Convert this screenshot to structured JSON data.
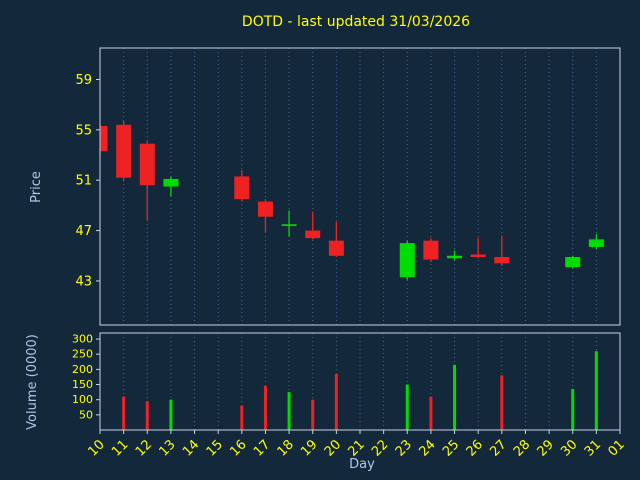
{
  "chart_data": {
    "type": "candlestick",
    "title": "DOTD - last updated 31/03/2026",
    "xlabel": "Day",
    "ylabel_price": "Price",
    "ylabel_volume": "Volume (0000)",
    "x_ticklabels": [
      "10",
      "11",
      "12",
      "13",
      "14",
      "15",
      "16",
      "17",
      "18",
      "19",
      "20",
      "21",
      "22",
      "23",
      "24",
      "25",
      "26",
      "27",
      "28",
      "29",
      "30",
      "31",
      "01"
    ],
    "price_ticks": [
      59,
      55,
      51,
      47,
      43
    ],
    "price_ylim": [
      39.5,
      61.5
    ],
    "volume_ticks": [
      300,
      250,
      200,
      150,
      100,
      50
    ],
    "volume_ylim": [
      0,
      320
    ],
    "grid": "vertical-dotted",
    "legend": "none",
    "candles": [
      {
        "day": "10",
        "open": 55.3,
        "high": 55.5,
        "low": 53.0,
        "close": 53.3,
        "volume": 0
      },
      {
        "day": "11",
        "open": 55.4,
        "high": 55.7,
        "low": 50.9,
        "close": 51.2,
        "volume": 110
      },
      {
        "day": "12",
        "open": 53.9,
        "high": 54.1,
        "low": 47.8,
        "close": 50.6,
        "volume": 95
      },
      {
        "day": "13",
        "open": 50.5,
        "high": 51.3,
        "low": 49.7,
        "close": 51.1,
        "volume": 100
      },
      {
        "day": "16",
        "open": 51.3,
        "high": 51.8,
        "low": 49.3,
        "close": 49.5,
        "volume": 80
      },
      {
        "day": "17",
        "open": 49.3,
        "high": 49.5,
        "low": 46.9,
        "close": 48.1,
        "volume": 145
      },
      {
        "day": "18",
        "open": 47.4,
        "high": 48.6,
        "low": 46.5,
        "close": 47.5,
        "volume": 125
      },
      {
        "day": "19",
        "open": 47.0,
        "high": 48.5,
        "low": 46.3,
        "close": 46.4,
        "volume": 100
      },
      {
        "day": "20",
        "open": 46.2,
        "high": 47.7,
        "low": 44.9,
        "close": 45.0,
        "volume": 185
      },
      {
        "day": "23",
        "open": 43.3,
        "high": 46.2,
        "low": 43.1,
        "close": 46.0,
        "volume": 150
      },
      {
        "day": "24",
        "open": 46.2,
        "high": 46.4,
        "low": 44.5,
        "close": 44.7,
        "volume": 110
      },
      {
        "day": "25",
        "open": 44.8,
        "high": 45.4,
        "low": 44.6,
        "close": 45.0,
        "volume": 215
      },
      {
        "day": "26",
        "open": 45.1,
        "high": 46.4,
        "low": 44.8,
        "close": 44.9,
        "volume": 0
      },
      {
        "day": "27",
        "open": 44.9,
        "high": 46.6,
        "low": 44.2,
        "close": 44.4,
        "volume": 180
      },
      {
        "day": "30",
        "open": 44.1,
        "high": 45.0,
        "low": 44.0,
        "close": 44.9,
        "volume": 135
      },
      {
        "day": "31",
        "open": 45.7,
        "high": 46.7,
        "low": 45.5,
        "close": 46.3,
        "volume": 260
      }
    ],
    "colors": {
      "background": "#14283c",
      "up": "#00dd00",
      "down": "#ee2222",
      "grid": "#44688c",
      "axis": "#c8d4e0",
      "tick_text": "#ffff00",
      "title_text": "#ffff00",
      "label_text": "#aec8e8"
    }
  }
}
